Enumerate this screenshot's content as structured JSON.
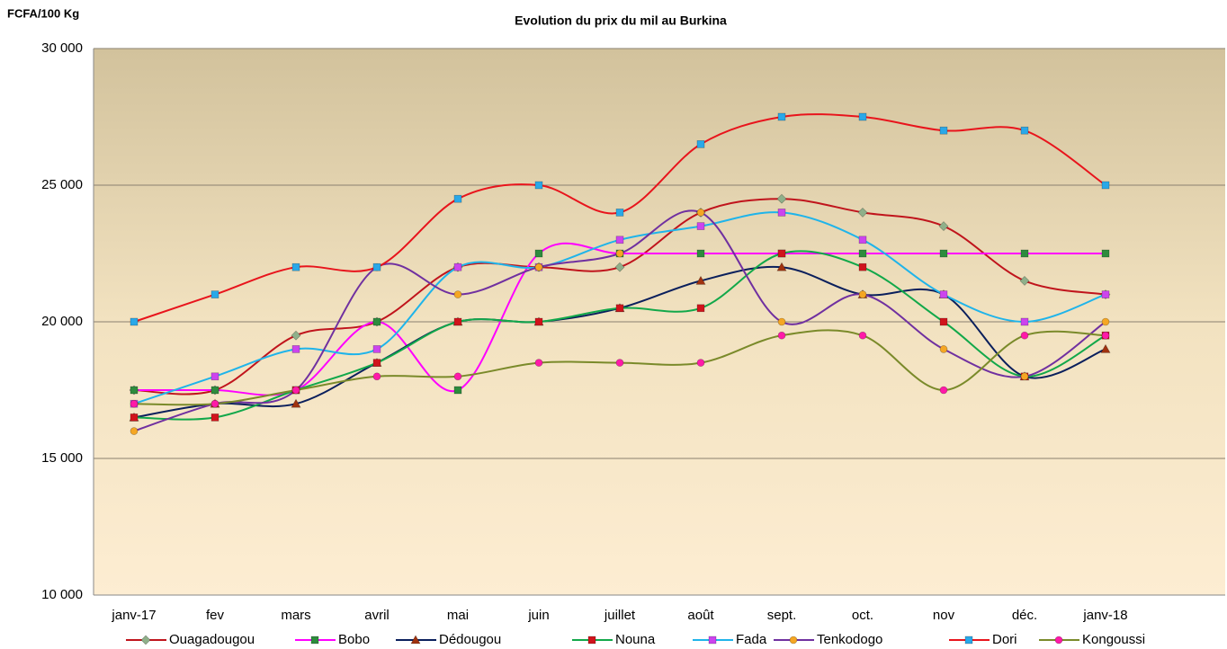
{
  "chart_data": {
    "type": "line",
    "title": "Evolution du prix du mil au Burkina",
    "y_label": "FCFA/100 Kg",
    "categories": [
      "janv-17",
      "fev",
      "mars",
      "avril",
      "mai",
      "juin",
      "juillet",
      "août",
      "sept.",
      "oct.",
      "nov",
      "déc.",
      "janv-18"
    ],
    "ylim": [
      10000,
      30000
    ],
    "yticks": [
      {
        "value": 10000,
        "label": "10 000"
      },
      {
        "value": 15000,
        "label": "15 000"
      },
      {
        "value": 20000,
        "label": "20 000"
      },
      {
        "value": 25000,
        "label": "25 000"
      },
      {
        "value": 30000,
        "label": "30 000"
      }
    ],
    "grid": true,
    "smooth": true,
    "legend": "bottom",
    "series": [
      {
        "name": "Ouagadougou",
        "color": "#c0141c",
        "marker": "diamond",
        "marker_color": "#8fb08a",
        "values": [
          17500,
          17500,
          19500,
          20000,
          22000,
          22000,
          22000,
          24000,
          24500,
          24000,
          23500,
          21500,
          21000
        ]
      },
      {
        "name": "Bobo",
        "color": "#ff00ff",
        "marker": "square",
        "marker_color": "#2e8b3e",
        "values": [
          17500,
          17500,
          17500,
          20000,
          17500,
          22500,
          22500,
          22500,
          22500,
          22500,
          22500,
          22500,
          22500
        ]
      },
      {
        "name": "Dédougou",
        "color": "#0a1f5c",
        "marker": "triangle",
        "marker_color": "#a0320f",
        "values": [
          16500,
          17000,
          17000,
          18500,
          20000,
          20000,
          20500,
          21500,
          22000,
          21000,
          21000,
          18000,
          19000
        ]
      },
      {
        "name": "Nouna",
        "color": "#12a84a",
        "marker": "square",
        "marker_color": "#d0141c",
        "values": [
          16500,
          16500,
          17500,
          18500,
          20000,
          20000,
          20500,
          20500,
          22500,
          22000,
          20000,
          18000,
          19500
        ]
      },
      {
        "name": "Fada",
        "color": "#1fb4ea",
        "marker": "square",
        "marker_color": "#cc44ee",
        "values": [
          17000,
          18000,
          19000,
          19000,
          22000,
          22000,
          23000,
          23500,
          24000,
          23000,
          21000,
          20000,
          21000
        ]
      },
      {
        "name": "Tenkodogo",
        "color": "#7030a0",
        "marker": "circle",
        "marker_color": "#f5a623",
        "values": [
          16000,
          17000,
          17500,
          22000,
          21000,
          22000,
          22500,
          24000,
          20000,
          21000,
          19000,
          18000,
          20000
        ]
      },
      {
        "name": "Dori",
        "color": "#e8141c",
        "marker": "square",
        "marker_color": "#2aa8e8",
        "values": [
          20000,
          21000,
          22000,
          22000,
          24500,
          25000,
          24000,
          26500,
          27500,
          27500,
          27000,
          27000,
          25000
        ]
      },
      {
        "name": "Kongoussi",
        "color": "#7a8a2a",
        "marker": "circle",
        "marker_color": "#ff1aa8",
        "values": [
          17000,
          17000,
          17500,
          18000,
          18000,
          18500,
          18500,
          18500,
          19500,
          19500,
          17500,
          19500,
          19500
        ]
      }
    ]
  }
}
